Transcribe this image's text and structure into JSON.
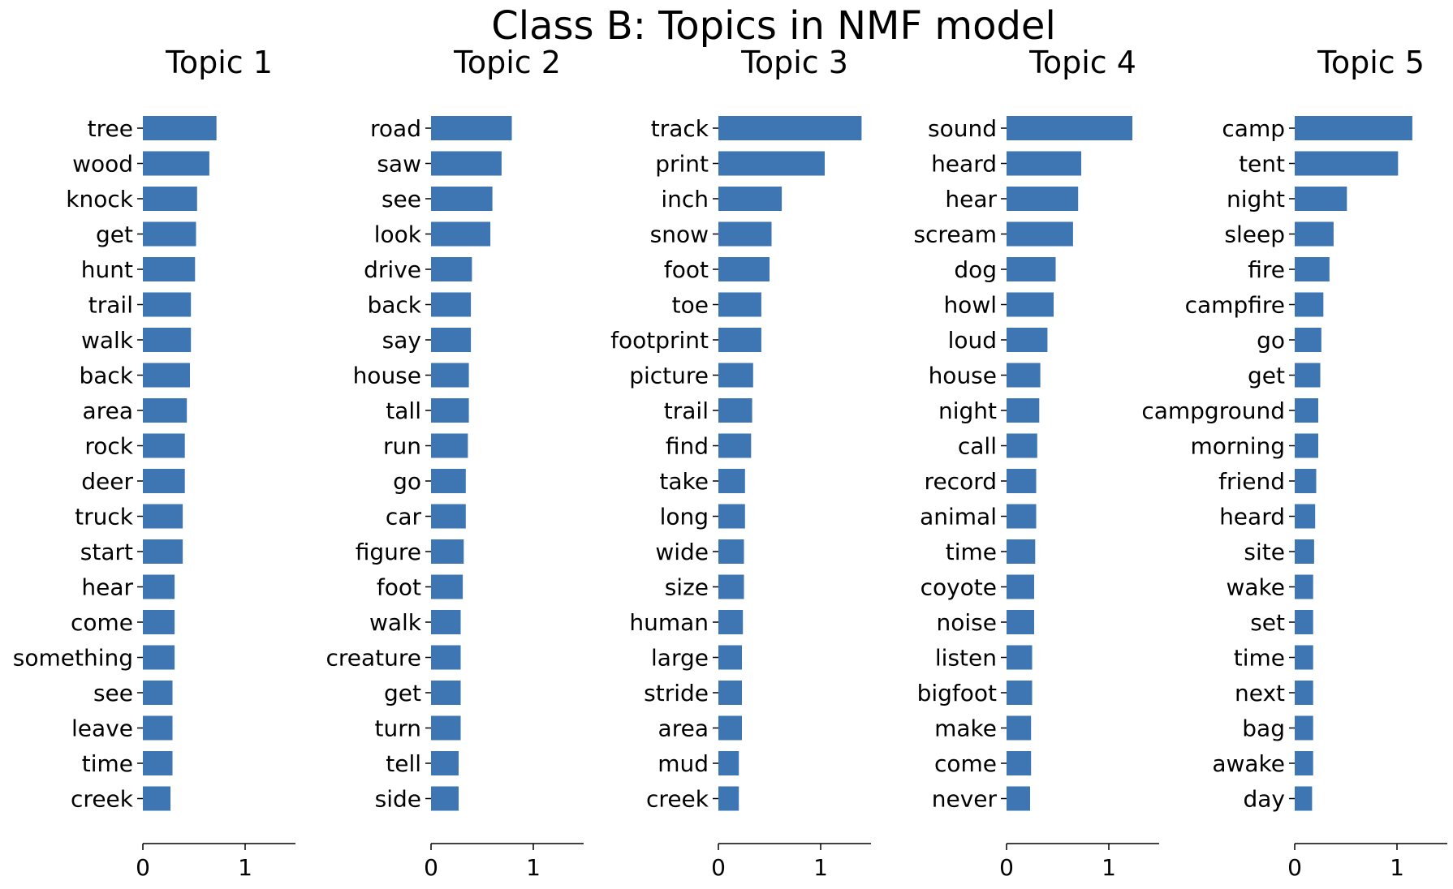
{
  "figure": {
    "title": "Class B: Topics in NMF model",
    "bar_color": "#3d76b3"
  },
  "chart_data": [
    {
      "type": "bar",
      "orientation": "horizontal",
      "title": "Topic 1",
      "xlim": [
        0,
        1.48
      ],
      "xticks": [
        "0",
        "1"
      ],
      "categories": [
        "tree",
        "wood",
        "knock",
        "get",
        "hunt",
        "trail",
        "walk",
        "back",
        "area",
        "rock",
        "deer",
        "truck",
        "start",
        "hear",
        "come",
        "something",
        "see",
        "leave",
        "time",
        "creek"
      ],
      "values": [
        0.72,
        0.65,
        0.53,
        0.52,
        0.51,
        0.47,
        0.47,
        0.46,
        0.43,
        0.41,
        0.41,
        0.39,
        0.39,
        0.31,
        0.31,
        0.31,
        0.29,
        0.29,
        0.29,
        0.27
      ]
    },
    {
      "type": "bar",
      "orientation": "horizontal",
      "title": "Topic 2",
      "xlim": [
        0,
        1.48
      ],
      "xticks": [
        "0",
        "1"
      ],
      "categories": [
        "road",
        "saw",
        "see",
        "look",
        "drive",
        "back",
        "say",
        "house",
        "tall",
        "run",
        "go",
        "car",
        "figure",
        "foot",
        "walk",
        "creature",
        "get",
        "turn",
        "tell",
        "side"
      ],
      "values": [
        0.79,
        0.69,
        0.6,
        0.58,
        0.4,
        0.39,
        0.39,
        0.37,
        0.37,
        0.36,
        0.34,
        0.34,
        0.32,
        0.31,
        0.29,
        0.29,
        0.29,
        0.29,
        0.27,
        0.27
      ]
    },
    {
      "type": "bar",
      "orientation": "horizontal",
      "title": "Topic 3",
      "xlim": [
        0,
        1.48
      ],
      "xticks": [
        "0",
        "1"
      ],
      "categories": [
        "track",
        "print",
        "inch",
        "snow",
        "foot",
        "toe",
        "footprint",
        "picture",
        "trail",
        "find",
        "take",
        "long",
        "wide",
        "size",
        "human",
        "large",
        "stride",
        "area",
        "mud",
        "creek"
      ],
      "values": [
        1.4,
        1.04,
        0.62,
        0.52,
        0.5,
        0.42,
        0.42,
        0.34,
        0.33,
        0.32,
        0.26,
        0.26,
        0.25,
        0.25,
        0.24,
        0.23,
        0.23,
        0.23,
        0.2,
        0.2
      ]
    },
    {
      "type": "bar",
      "orientation": "horizontal",
      "title": "Topic 4",
      "xlim": [
        0,
        1.48
      ],
      "xticks": [
        "0",
        "1"
      ],
      "categories": [
        "sound",
        "heard",
        "hear",
        "scream",
        "dog",
        "howl",
        "loud",
        "house",
        "night",
        "call",
        "record",
        "animal",
        "time",
        "coyote",
        "noise",
        "listen",
        "bigfoot",
        "make",
        "come",
        "never"
      ],
      "values": [
        1.23,
        0.73,
        0.7,
        0.65,
        0.48,
        0.46,
        0.4,
        0.33,
        0.32,
        0.3,
        0.29,
        0.29,
        0.28,
        0.27,
        0.27,
        0.25,
        0.25,
        0.24,
        0.24,
        0.23
      ]
    },
    {
      "type": "bar",
      "orientation": "horizontal",
      "title": "Topic 5",
      "xlim": [
        0,
        1.48
      ],
      "xticks": [
        "0",
        "1"
      ],
      "categories": [
        "camp",
        "tent",
        "night",
        "sleep",
        "fire",
        "campfire",
        "go",
        "get",
        "campground",
        "morning",
        "friend",
        "heard",
        "site",
        "wake",
        "set",
        "time",
        "next",
        "bag",
        "awake",
        "day"
      ],
      "values": [
        1.15,
        1.01,
        0.51,
        0.38,
        0.34,
        0.28,
        0.26,
        0.25,
        0.23,
        0.23,
        0.21,
        0.2,
        0.19,
        0.18,
        0.18,
        0.18,
        0.18,
        0.18,
        0.18,
        0.17
      ]
    }
  ]
}
